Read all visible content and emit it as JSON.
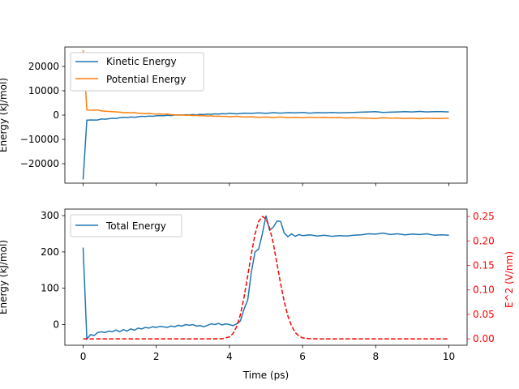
{
  "chart_data": [
    {
      "type": "line",
      "xlim": [
        -0.5,
        10.5
      ],
      "ylim": [
        -28000,
        28000
      ],
      "yticks": [
        -20000,
        -10000,
        0,
        10000,
        20000
      ],
      "ytick_labels": [
        "−20000",
        "−10000",
        "0",
        "10000",
        "20000"
      ],
      "xticks": [
        0,
        2,
        4,
        6,
        8,
        10
      ],
      "ylabel": "Energy (kJ/mol)",
      "xlabel": "",
      "legend_loc": "upper-left",
      "series": [
        {
          "name": "Kinetic Energy",
          "color": "#1f77b4",
          "x": [
            0,
            0.1,
            0.2,
            0.3,
            0.4,
            0.5,
            0.6,
            0.7,
            0.8,
            0.9,
            1.0,
            1.1,
            1.2,
            1.3,
            1.4,
            1.5,
            1.6,
            1.7,
            1.8,
            1.9,
            2.0,
            2.1,
            2.2,
            2.3,
            2.4,
            2.5,
            2.6,
            2.7,
            2.8,
            2.9,
            3.0,
            3.1,
            3.2,
            3.3,
            3.4,
            3.5,
            3.6,
            3.7,
            3.8,
            3.9,
            4.0,
            4.2,
            4.4,
            4.6,
            4.8,
            5.0,
            5.2,
            5.4,
            5.6,
            5.8,
            6.0,
            6.2,
            6.4,
            6.6,
            6.8,
            7.0,
            7.2,
            7.4,
            7.6,
            7.8,
            8.0,
            8.2,
            8.4,
            8.6,
            8.8,
            9.0,
            9.2,
            9.4,
            9.6,
            9.8,
            10.0
          ],
          "y": [
            -26500,
            -2100,
            -2000,
            -2050,
            -2000,
            -1600,
            -1700,
            -1500,
            -1300,
            -1400,
            -1100,
            -900,
            -1000,
            -800,
            -900,
            -700,
            -500,
            -600,
            -400,
            -500,
            -300,
            -200,
            -300,
            -100,
            -200,
            0,
            100,
            0,
            150,
            50,
            200,
            100,
            300,
            200,
            400,
            300,
            500,
            400,
            600,
            500,
            700,
            500,
            800,
            700,
            900,
            700,
            1000,
            800,
            1000,
            900,
            1100,
            800,
            1000,
            900,
            1100,
            900,
            1000,
            1100,
            1200,
            1300,
            1400,
            1100,
            1200,
            1300,
            1400,
            1300,
            1500,
            1300,
            1400,
            1400,
            1300
          ]
        },
        {
          "name": "Potential Energy",
          "color": "#ff7f0e",
          "x": [
            0,
            0.1,
            0.2,
            0.3,
            0.4,
            0.5,
            0.6,
            0.7,
            0.8,
            0.9,
            1.0,
            1.1,
            1.2,
            1.3,
            1.4,
            1.5,
            1.6,
            1.7,
            1.8,
            1.9,
            2.0,
            2.1,
            2.2,
            2.3,
            2.4,
            2.5,
            2.6,
            2.7,
            2.8,
            2.9,
            3.0,
            3.1,
            3.2,
            3.3,
            3.4,
            3.5,
            3.6,
            3.7,
            3.8,
            3.9,
            4.0,
            4.2,
            4.4,
            4.6,
            4.8,
            5.0,
            5.2,
            5.4,
            5.6,
            5.8,
            6.0,
            6.2,
            6.4,
            6.6,
            6.8,
            7.0,
            7.2,
            7.4,
            7.6,
            7.8,
            8.0,
            8.2,
            8.4,
            8.6,
            8.8,
            9.0,
            9.2,
            9.4,
            9.6,
            9.8,
            10.0
          ],
          "y": [
            26700,
            2100,
            2050,
            2000,
            2100,
            1700,
            1600,
            1500,
            1400,
            1300,
            1200,
            1000,
            1100,
            900,
            1000,
            800,
            700,
            600,
            700,
            500,
            400,
            500,
            300,
            400,
            200,
            100,
            0,
            100,
            -100,
            0,
            -200,
            -100,
            -300,
            -200,
            -400,
            -300,
            -500,
            -400,
            -600,
            -500,
            -700,
            -500,
            -800,
            -700,
            -900,
            -800,
            -1000,
            -800,
            -1000,
            -900,
            -1100,
            -900,
            -1000,
            -900,
            -1100,
            -1000,
            -1200,
            -1100,
            -1200,
            -1300,
            -1400,
            -1100,
            -1300,
            -1200,
            -1400,
            -1300,
            -1500,
            -1300,
            -1400,
            -1400,
            -1300
          ]
        }
      ]
    },
    {
      "type": "line",
      "xlim": [
        -0.5,
        10.5
      ],
      "ylim": [
        -57,
        318
      ],
      "yticks": [
        0,
        100,
        200,
        300
      ],
      "ytick_labels": [
        "0",
        "100",
        "200",
        "300"
      ],
      "xticks": [
        0,
        2,
        4,
        6,
        8,
        10
      ],
      "xtick_labels": [
        "0",
        "2",
        "4",
        "6",
        "8",
        "10"
      ],
      "xlabel": "Time (ps)",
      "ylabel": "Energy (kJ/mol)",
      "legend_loc": "upper-left",
      "series": [
        {
          "name": "Total Energy",
          "color": "#1f77b4",
          "x": [
            0,
            0.1,
            0.2,
            0.3,
            0.4,
            0.5,
            0.6,
            0.7,
            0.8,
            0.9,
            1.0,
            1.1,
            1.2,
            1.3,
            1.4,
            1.5,
            1.6,
            1.7,
            1.8,
            1.9,
            2.0,
            2.1,
            2.2,
            2.3,
            2.4,
            2.5,
            2.6,
            2.7,
            2.8,
            2.9,
            3.0,
            3.1,
            3.2,
            3.3,
            3.4,
            3.5,
            3.6,
            3.7,
            3.8,
            3.9,
            4.0,
            4.1,
            4.2,
            4.3,
            4.4,
            4.5,
            4.6,
            4.7,
            4.8,
            4.9,
            5.0,
            5.1,
            5.2,
            5.3,
            5.4,
            5.5,
            5.6,
            5.7,
            5.8,
            5.9,
            6.0,
            6.2,
            6.4,
            6.6,
            6.8,
            7.0,
            7.2,
            7.4,
            7.6,
            7.8,
            8.0,
            8.2,
            8.4,
            8.6,
            8.8,
            9.0,
            9.2,
            9.4,
            9.6,
            9.8,
            10.0
          ],
          "y": [
            212,
            -40,
            -28,
            -30,
            -22,
            -20,
            -22,
            -18,
            -20,
            -15,
            -20,
            -14,
            -18,
            -12,
            -16,
            -10,
            -12,
            -8,
            -10,
            -6,
            -8,
            -5,
            -6,
            -8,
            -4,
            -6,
            -2,
            -4,
            0,
            -2,
            0,
            -4,
            -3,
            -6,
            -2,
            2,
            0,
            3,
            -1,
            2,
            0,
            -3,
            2,
            10,
            42,
            68,
            145,
            200,
            208,
            250,
            300,
            260,
            268,
            285,
            284,
            252,
            242,
            250,
            243,
            248,
            245,
            247,
            244,
            246,
            243,
            245,
            244,
            246,
            247,
            250,
            249,
            252,
            248,
            250,
            247,
            249,
            248,
            250,
            246,
            247,
            246
          ]
        }
      ],
      "secondary_axis": {
        "ylabel": "E^2 (V/nm)",
        "color": "#ff0000",
        "ylim": [
          -0.013,
          0.265
        ],
        "yticks": [
          0.0,
          0.05,
          0.1,
          0.15,
          0.2,
          0.25
        ],
        "ytick_labels": [
          "0.00",
          "0.05",
          "0.10",
          "0.15",
          "0.20",
          "0.25"
        ],
        "series": [
          {
            "name": "E^2",
            "style": "dashed",
            "color": "#ff0000",
            "x": [
              0,
              0.5,
              1,
              1.5,
              2,
              2.5,
              3,
              3.5,
              3.8,
              4.0,
              4.1,
              4.2,
              4.3,
              4.4,
              4.5,
              4.6,
              4.7,
              4.8,
              4.9,
              5.0,
              5.1,
              5.2,
              5.3,
              5.4,
              5.5,
              5.6,
              5.7,
              5.8,
              5.9,
              6.0,
              6.2,
              6.5,
              7,
              8,
              9,
              10
            ],
            "y": [
              0,
              0,
              0,
              0,
              0,
              0,
              0,
              0,
              0.0002,
              0.004,
              0.011,
              0.025,
              0.049,
              0.085,
              0.129,
              0.174,
              0.214,
              0.24,
              0.25,
              0.245,
              0.226,
              0.195,
              0.154,
              0.113,
              0.076,
              0.046,
              0.026,
              0.013,
              0.006,
              0.002,
              0.0002,
              0,
              0,
              0,
              0,
              0
            ]
          }
        ]
      }
    }
  ]
}
